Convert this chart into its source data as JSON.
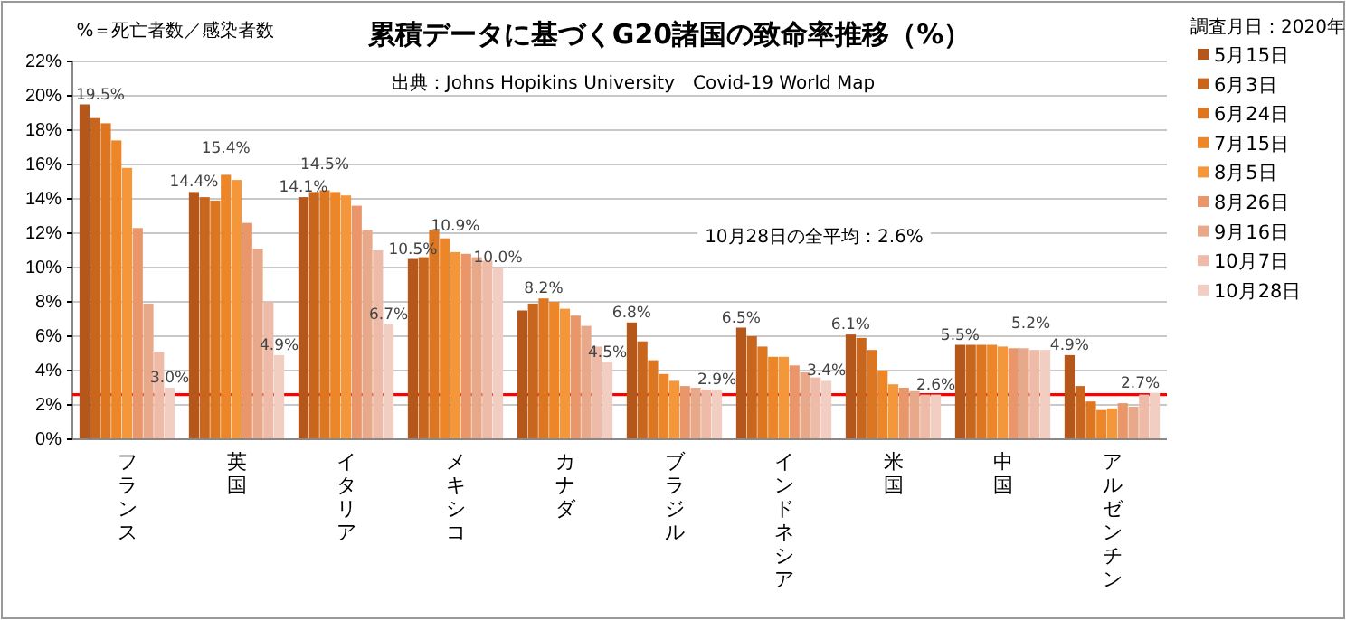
{
  "chart_data": {
    "type": "bar",
    "title": "累積データに基づくG20諸国の致命率推移（%）",
    "legend_title": "調査月日：2020年",
    "annotations": [
      "%＝死亡者数／感染者数",
      "出典：Johns Hopikins University　Covid-19 World Map",
      "10月28日の全平均：2.6%"
    ],
    "categories": [
      "フランス",
      "英国",
      "イタリア",
      "メキシコ",
      "カナダ",
      "ブラジル",
      "インドネシア",
      "米国",
      "中国",
      "アルゼンチン"
    ],
    "series": [
      {
        "name": "5月15日",
        "color": "#b5561b",
        "values": [
          19.5,
          14.4,
          14.1,
          10.5,
          7.5,
          6.8,
          6.5,
          6.1,
          5.5,
          4.9
        ],
        "value_labels": [
          "19.5%",
          "14.4%",
          "14.1%",
          "10.5%",
          null,
          "6.8%",
          "6.5%",
          "6.1%",
          "5.5%",
          "4.9%"
        ]
      },
      {
        "name": "6月3日",
        "color": "#c9661e",
        "values": [
          18.7,
          14.1,
          14.4,
          10.6,
          7.9,
          5.7,
          6.0,
          5.9,
          5.5,
          3.1
        ]
      },
      {
        "name": "6月24日",
        "color": "#dc7621",
        "values": [
          18.4,
          13.9,
          14.5,
          12.2,
          8.2,
          4.6,
          5.4,
          5.2,
          5.5,
          2.2
        ],
        "value_labels": [
          null,
          null,
          "14.5%",
          null,
          "8.2%",
          null,
          null,
          null,
          null,
          null
        ]
      },
      {
        "name": "7月15日",
        "color": "#ec8628",
        "values": [
          17.4,
          15.4,
          14.4,
          11.7,
          8.0,
          3.8,
          4.8,
          4.0,
          5.5,
          1.7
        ],
        "value_labels": [
          null,
          "15.4%",
          null,
          null,
          null,
          null,
          null,
          null,
          null,
          null
        ]
      },
      {
        "name": "8月5日",
        "color": "#f4963a",
        "values": [
          15.8,
          15.1,
          14.2,
          10.9,
          7.6,
          3.4,
          4.8,
          3.2,
          5.4,
          1.8
        ],
        "value_labels": [
          null,
          null,
          null,
          "10.9%",
          null,
          null,
          null,
          null,
          null,
          null
        ]
      },
      {
        "name": "8月26日",
        "color": "#e9976a",
        "values": [
          12.3,
          12.6,
          13.6,
          10.8,
          7.2,
          3.1,
          4.3,
          3.0,
          5.3,
          2.1
        ]
      },
      {
        "name": "9月16日",
        "color": "#e8a98b",
        "values": [
          7.9,
          11.1,
          12.2,
          10.6,
          6.6,
          3.0,
          3.9,
          2.8,
          5.3,
          1.9
        ]
      },
      {
        "name": "10月7日",
        "color": "#edbba8",
        "values": [
          5.1,
          8.0,
          11.0,
          10.4,
          5.4,
          2.9,
          3.6,
          2.6,
          5.2,
          2.6
        ]
      },
      {
        "name": "10月28日",
        "color": "#f1cdc2",
        "values": [
          3.0,
          4.9,
          6.7,
          10.0,
          4.5,
          2.9,
          3.4,
          2.6,
          5.2,
          2.7
        ],
        "value_labels": [
          "3.0%",
          "4.9%",
          "6.7%",
          "10.0%",
          "4.5%",
          "2.9%",
          "3.4%",
          "2.6%",
          "5.2%",
          "2.7%"
        ]
      }
    ],
    "ylim": [
      0,
      22
    ],
    "yticks": [
      {
        "value": 0,
        "label": "0%"
      },
      {
        "value": 2,
        "label": "2%"
      },
      {
        "value": 4,
        "label": "4%"
      },
      {
        "value": 6,
        "label": "6%"
      },
      {
        "value": 8,
        "label": "8%"
      },
      {
        "value": 10,
        "label": "10%"
      },
      {
        "value": 12,
        "label": "12%"
      },
      {
        "value": 14,
        "label": "14%"
      },
      {
        "value": 16,
        "label": "16%"
      },
      {
        "value": 18,
        "label": "18%"
      },
      {
        "value": 20,
        "label": "20%"
      },
      {
        "value": 22,
        "label": "22%"
      }
    ],
    "grid": "y",
    "legend": "right",
    "ref_lines": [
      {
        "axis": "y",
        "value": 2.6,
        "color": "#ff0000"
      }
    ]
  }
}
